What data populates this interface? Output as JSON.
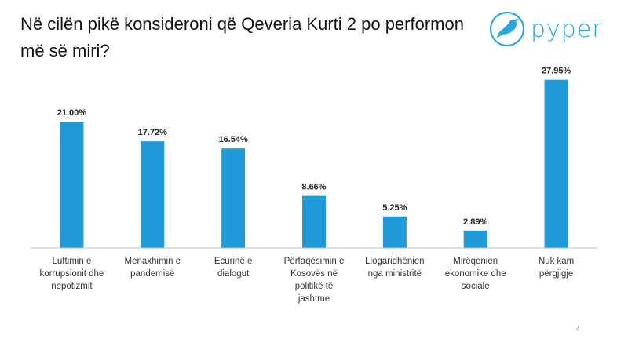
{
  "title": "Në cilën pikë konsideroni që Qeveria Kurti 2 po performon më së miri?",
  "logo": {
    "text": "pyper",
    "icon": "bird-icon",
    "color": "#29a8e0"
  },
  "page_number": "4",
  "chart_data": {
    "type": "bar",
    "title": "Në cilën pikë konsideroni që Qeveria Kurti 2 po performon më së miri?",
    "categories": [
      "Luftimin e korrupsionit dhe nepotizmit",
      "Menaxhimin e pandemisë",
      "Ecurinë e dialogut",
      "Përfaqësimin e Kosovës në politikë të jashtme",
      "Llogaridhënien nga ministritë",
      "Mirëqenien ekonomike dhe sociale",
      "Nuk kam përgjigje"
    ],
    "category_lines": [
      [
        "Luftimin e",
        "korrupsionit dhe",
        "nepotizmit"
      ],
      [
        "Menaxhimin e",
        "pandemisë"
      ],
      [
        "Ecurinë e",
        "dialogut"
      ],
      [
        "Përfaqësimin e",
        "Kosovës në",
        "politikë të",
        "jashtme"
      ],
      [
        "Llogaridhënien",
        "nga ministritë"
      ],
      [
        "Mirëqenien",
        "ekonomike dhe",
        "sociale"
      ],
      [
        "Nuk kam",
        "përgjigje"
      ]
    ],
    "values": [
      21.0,
      17.72,
      16.54,
      8.66,
      5.25,
      2.89,
      27.95
    ],
    "value_labels": [
      "21.00%",
      "17.72%",
      "16.54%",
      "8.66%",
      "5.25%",
      "2.89%",
      "27.95%"
    ],
    "ylim": [
      0,
      30
    ],
    "grid": false,
    "legend": "none",
    "bar_color": "#1f9ad6",
    "axis_color": "#bfbfbf"
  }
}
